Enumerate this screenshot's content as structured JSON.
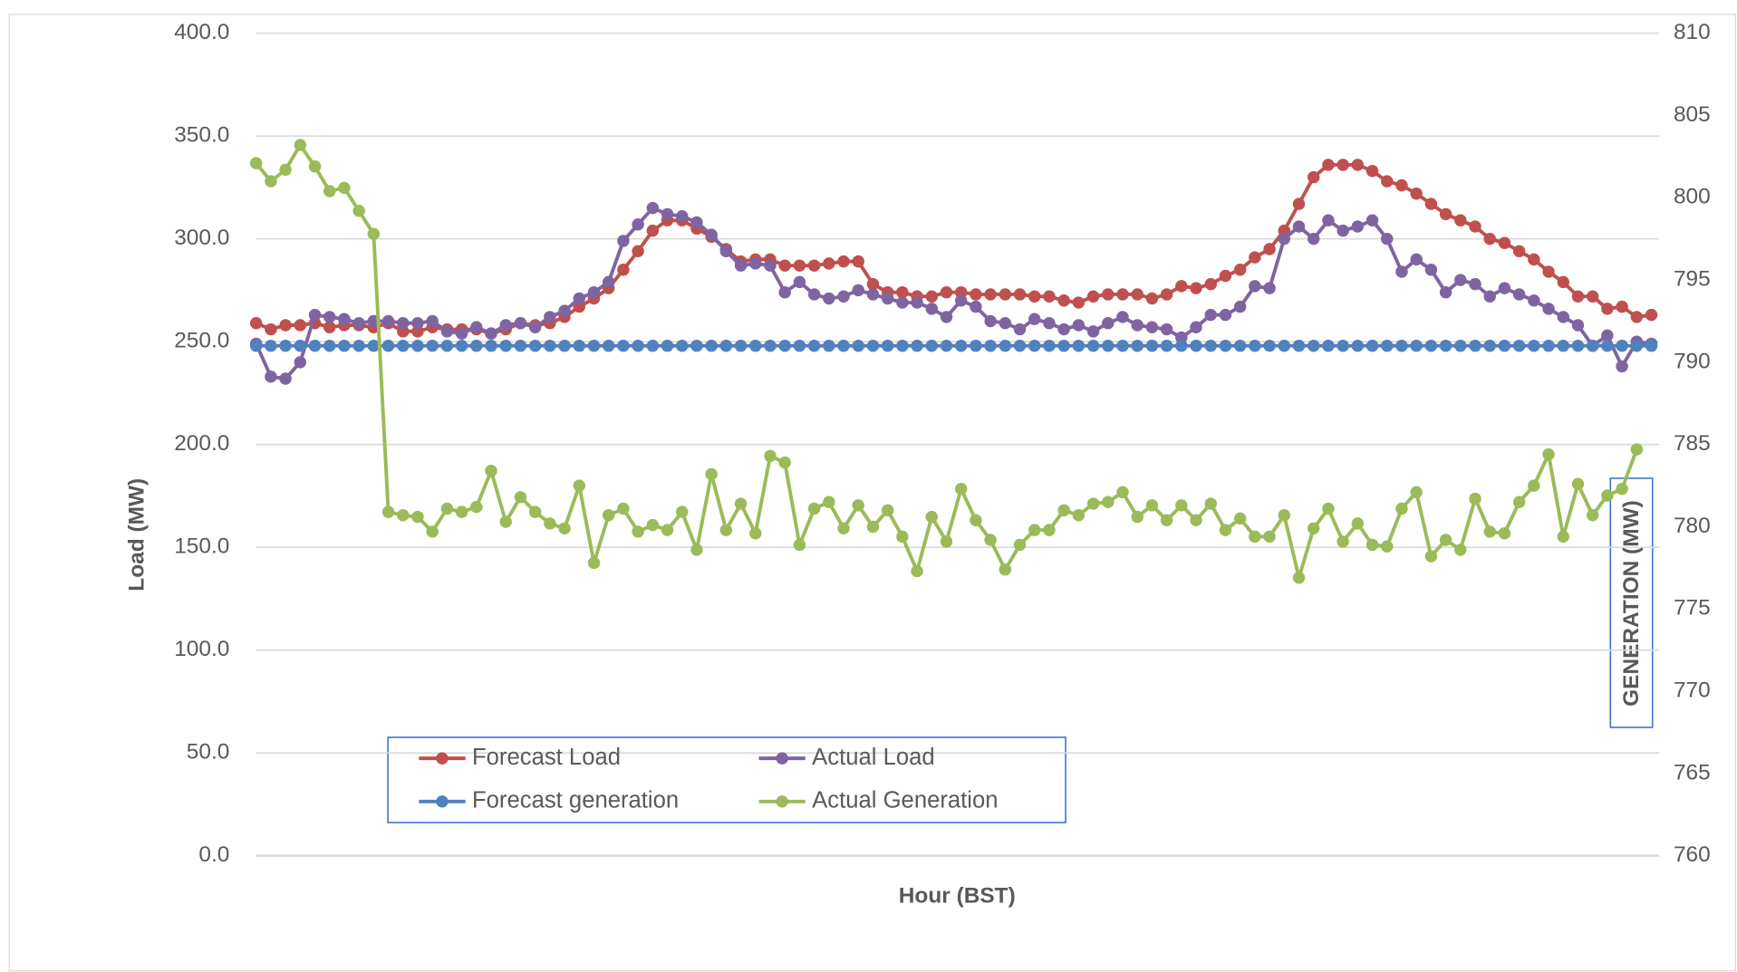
{
  "chart_data": {
    "type": "line",
    "x_label": "Hour (BST)",
    "y_label": "Load (MW)",
    "y2_label": "GENERATION (MW)",
    "ylim": [
      0,
      400
    ],
    "yticks": [
      {
        "value": 0,
        "label": "0.0"
      },
      {
        "value": 50,
        "label": "50.0"
      },
      {
        "value": 100,
        "label": "100.0"
      },
      {
        "value": 150,
        "label": "150.0"
      },
      {
        "value": 200,
        "label": "200.0"
      },
      {
        "value": 250,
        "label": "250.0"
      },
      {
        "value": 300,
        "label": "300.0"
      },
      {
        "value": 350,
        "label": "350.0"
      },
      {
        "value": 400,
        "label": "400.0"
      }
    ],
    "y2lim": [
      760,
      810
    ],
    "y2ticks": [
      760,
      765,
      770,
      775,
      780,
      785,
      790,
      795,
      800,
      805,
      810
    ],
    "grid": true,
    "series": [
      {
        "name": "Forecast Load",
        "color": "#c0504d",
        "values": [
          259,
          256,
          258,
          258,
          259,
          257,
          258,
          258,
          257,
          259,
          255,
          255,
          257,
          256,
          256,
          256,
          254,
          256,
          259,
          258,
          259,
          262,
          267,
          271,
          276,
          285,
          294,
          304,
          309,
          309,
          305,
          301,
          295,
          289,
          290,
          290,
          287,
          287,
          287,
          288,
          289,
          289,
          278,
          274,
          274,
          272,
          272,
          274,
          274,
          273,
          273,
          273,
          273,
          272,
          272,
          270,
          269,
          272,
          273,
          273,
          273,
          271,
          273,
          277,
          276,
          278,
          282,
          285,
          291,
          295,
          304,
          317,
          330,
          336,
          336,
          336,
          333,
          328,
          326,
          322,
          317,
          312,
          309,
          306,
          300,
          298,
          294,
          290,
          284,
          279,
          272,
          272,
          266,
          267,
          262,
          263
        ]
      },
      {
        "name": "Actual Load",
        "color": "#8064a2",
        "values": [
          249,
          233,
          232,
          240,
          263,
          262,
          261,
          259,
          260,
          260,
          259,
          259,
          260,
          255,
          254,
          257,
          254,
          258,
          259,
          257,
          262,
          265,
          271,
          274,
          279,
          299,
          307,
          315,
          312,
          311,
          308,
          302,
          294,
          287,
          288,
          287,
          274,
          279,
          273,
          271,
          272,
          275,
          273,
          271,
          269,
          269,
          266,
          262,
          270,
          267,
          260,
          259,
          256,
          261,
          259,
          256,
          258,
          255,
          259,
          262,
          258,
          257,
          256,
          252,
          257,
          263,
          263,
          267,
          277,
          276,
          300,
          306,
          300,
          309,
          304,
          306,
          309,
          300,
          284,
          290,
          285,
          274,
          280,
          278,
          272,
          276,
          273,
          270,
          266,
          262,
          258,
          248,
          253,
          238,
          250,
          249
        ]
      },
      {
        "name": "Forecast generation",
        "color": "#4f81bd",
        "axis": "y2",
        "values": [
          791,
          791,
          791,
          791,
          791,
          791,
          791,
          791,
          791,
          791,
          791,
          791,
          791,
          791,
          791,
          791,
          791,
          791,
          791,
          791,
          791,
          791,
          791,
          791,
          791,
          791,
          791,
          791,
          791,
          791,
          791,
          791,
          791,
          791,
          791,
          791,
          791,
          791,
          791,
          791,
          791,
          791,
          791,
          791,
          791,
          791,
          791,
          791,
          791,
          791,
          791,
          791,
          791,
          791,
          791,
          791,
          791,
          791,
          791,
          791,
          791,
          791,
          791,
          791,
          791,
          791,
          791,
          791,
          791,
          791,
          791,
          791,
          791,
          791,
          791,
          791,
          791,
          791,
          791,
          791,
          791,
          791,
          791,
          791,
          791,
          791,
          791,
          791,
          791,
          791,
          791,
          791,
          791,
          791,
          791,
          791
        ]
      },
      {
        "name": "Actual Generation",
        "color": "#9bbb59",
        "axis": "y2",
        "values": [
          802.1,
          801.0,
          801.7,
          803.2,
          801.9,
          800.4,
          800.6,
          799.2,
          797.8,
          780.9,
          780.7,
          780.6,
          779.7,
          781.1,
          780.9,
          781.2,
          783.4,
          780.3,
          781.8,
          780.9,
          780.2,
          779.9,
          782.5,
          777.8,
          780.7,
          781.1,
          779.7,
          780.1,
          779.8,
          780.9,
          778.6,
          783.2,
          779.8,
          781.4,
          779.6,
          784.3,
          783.9,
          778.9,
          781.1,
          781.5,
          779.9,
          781.3,
          780.0,
          781.0,
          779.4,
          777.3,
          780.6,
          779.1,
          782.3,
          780.4,
          779.2,
          777.4,
          778.9,
          779.8,
          779.8,
          781.0,
          780.7,
          781.4,
          781.5,
          782.1,
          780.6,
          781.3,
          780.4,
          781.3,
          780.4,
          781.4,
          779.8,
          780.5,
          779.4,
          779.4,
          780.7,
          776.9,
          779.9,
          781.1,
          779.1,
          780.2,
          778.9,
          778.8,
          781.1,
          782.1,
          778.2,
          779.2,
          778.6,
          781.7,
          779.7,
          779.6,
          781.5,
          782.5,
          784.4,
          779.4,
          782.6,
          780.7,
          781.9,
          782.3,
          784.7,
          null
        ]
      }
    ]
  }
}
